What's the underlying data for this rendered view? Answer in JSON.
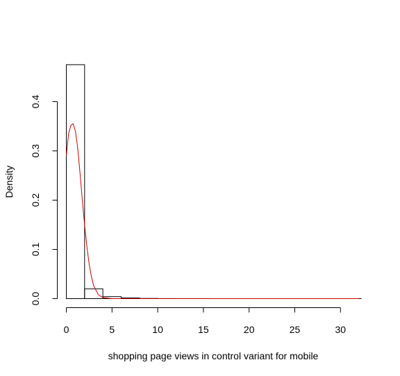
{
  "chart_data": {
    "type": "bar",
    "title": "",
    "xlabel": "shopping page views in control variant for mobile",
    "ylabel": "Density",
    "xlim": [
      0,
      32
    ],
    "ylim": [
      0,
      0.45
    ],
    "x_ticks": [
      0,
      5,
      10,
      15,
      20,
      25,
      30
    ],
    "y_ticks": [
      0.0,
      0.1,
      0.2,
      0.3,
      0.4
    ],
    "x_tick_labels": [
      "0",
      "5",
      "10",
      "15",
      "20",
      "25",
      "30"
    ],
    "y_tick_labels": [
      "0.0",
      "0.1",
      "0.2",
      "0.3",
      "0.4"
    ],
    "bin_edges": [
      0,
      2,
      4,
      6,
      8,
      10,
      12,
      14,
      16,
      18,
      20,
      22,
      24,
      26,
      28,
      30,
      32
    ],
    "densities": [
      0.475,
      0.02,
      0.004,
      0.0015,
      0.0005,
      0.0002,
      0.0001,
      0.0001,
      0.0,
      0.0,
      0.0,
      0.0,
      0.0,
      0.0,
      0.0,
      0.0
    ],
    "curve": {
      "color": "#cc0000",
      "x": [
        0,
        0.25,
        0.5,
        0.75,
        1.0,
        1.25,
        1.5,
        1.75,
        2.0,
        2.25,
        2.5,
        2.75,
        3.0,
        3.5,
        4.0,
        5.0,
        6.0,
        8.0,
        10.0,
        15.0,
        20.0,
        25.0,
        32.0
      ],
      "y": [
        0.29,
        0.335,
        0.352,
        0.355,
        0.34,
        0.305,
        0.255,
        0.2,
        0.15,
        0.106,
        0.07,
        0.044,
        0.026,
        0.008,
        0.002,
        0.0,
        0.0,
        0.0,
        0.0,
        0.0,
        0.0,
        0.0,
        0.0
      ]
    },
    "grid": false,
    "legend": "none"
  }
}
